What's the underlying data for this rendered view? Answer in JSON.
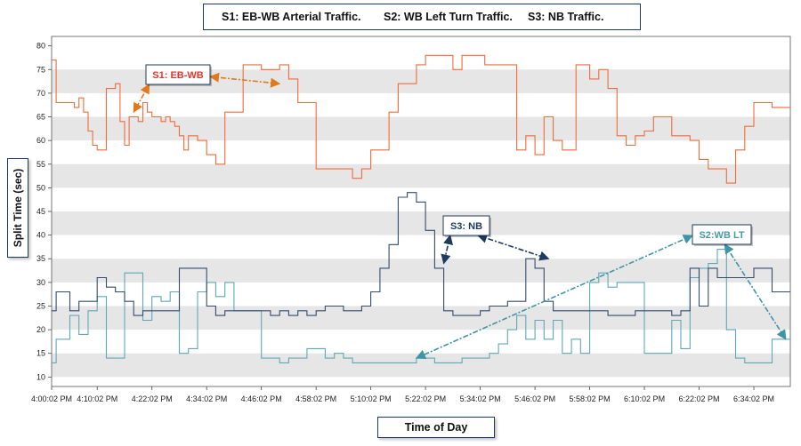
{
  "chart_data": {
    "type": "line",
    "step": true,
    "title": "",
    "xlabel": "Time of Day",
    "ylabel": "Split Time (sec)",
    "ylim": [
      8,
      82
    ],
    "yticks": [
      10,
      15,
      20,
      25,
      30,
      35,
      40,
      45,
      50,
      55,
      60,
      65,
      70,
      75,
      80
    ],
    "x_range_min": [
      0,
      162
    ],
    "xtick_labels": [
      "4:00:02 PM",
      "4:10:02 PM",
      "4:22:02 PM",
      "4:34:02 PM",
      "4:46:02 PM",
      "4:58:02 PM",
      "5:10:02 PM",
      "5:22:02 PM",
      "5:34:02 PM",
      "5:46:02 PM",
      "5:58:02 PM",
      "6:10:02 PM",
      "6:22:02 PM",
      "6:34:02 PM"
    ],
    "xtick_minutes": [
      0,
      10,
      22,
      34,
      46,
      58,
      70,
      82,
      94,
      106,
      118,
      130,
      142,
      154
    ],
    "grid": "horizontal-bands",
    "legend": {
      "position": "top",
      "entries": [
        "S1: EB-WB Arterial Traffic.",
        "S2: WB Left Turn Traffic.",
        "S3: NB Traffic."
      ]
    },
    "series": [
      {
        "name": "S1: EB-WB",
        "color": "#f26b3a",
        "x": [
          0,
          1,
          5,
          6,
          7,
          8,
          9,
          10,
          12,
          14,
          15,
          16,
          17,
          19,
          20,
          21,
          22,
          24,
          25,
          26,
          27,
          28,
          29,
          30,
          32,
          34,
          36,
          38,
          42,
          46,
          48,
          50,
          52,
          54,
          58,
          66,
          68,
          70,
          74,
          76,
          80,
          82,
          88,
          90,
          95,
          102,
          104,
          106,
          108,
          110,
          112,
          115,
          118,
          120,
          122,
          124,
          126,
          128,
          130,
          132,
          136,
          140,
          142,
          144,
          148,
          150,
          152,
          154,
          158,
          162
        ],
        "values": [
          77,
          68,
          67,
          69,
          66,
          62,
          59,
          58,
          71,
          72,
          64,
          59,
          65,
          64,
          68,
          66,
          65,
          64,
          65,
          64,
          63,
          61,
          58,
          61,
          60,
          57,
          55,
          66,
          76,
          75,
          75,
          76,
          73,
          68,
          54,
          52,
          54,
          58,
          66,
          72,
          76,
          78,
          75,
          78,
          76,
          58,
          61,
          57,
          65,
          60,
          58,
          76,
          73,
          75,
          71,
          61,
          59,
          61,
          62,
          65,
          61,
          60,
          56,
          54,
          51,
          58,
          63,
          68,
          67,
          67
        ]
      },
      {
        "name": "S2: WB LT",
        "color": "#5fa8b6",
        "x": [
          0,
          1,
          4,
          6,
          8,
          10,
          12,
          16,
          20,
          22,
          24,
          26,
          28,
          30,
          32,
          34,
          36,
          38,
          40,
          46,
          50,
          52,
          56,
          60,
          62,
          64,
          66,
          68,
          70,
          80,
          84,
          90,
          96,
          98,
          100,
          102,
          104,
          106,
          108,
          110,
          112,
          114,
          116,
          118,
          120,
          122,
          124,
          130,
          136,
          138,
          140,
          142,
          144,
          146,
          148,
          150,
          152,
          154,
          158,
          162
        ],
        "values": [
          13,
          18,
          23,
          19,
          24,
          27,
          14,
          32,
          22,
          27,
          26,
          28,
          15,
          16,
          28,
          30,
          27,
          30,
          24,
          14,
          13,
          14,
          16,
          14,
          15,
          14,
          13,
          13,
          13,
          14,
          13,
          14,
          15,
          17,
          20,
          23,
          18,
          22,
          18,
          22,
          15,
          18,
          15,
          30,
          32,
          29,
          30,
          15,
          22,
          16,
          31,
          33,
          34,
          37,
          20,
          14,
          13,
          13,
          18,
          18
        ]
      },
      {
        "name": "S3: NB",
        "color": "#344c6e",
        "x": [
          0,
          1,
          4,
          6,
          10,
          12,
          14,
          16,
          18,
          20,
          28,
          34,
          36,
          38,
          48,
          50,
          52,
          54,
          56,
          58,
          60,
          64,
          68,
          70,
          72,
          74,
          76,
          78,
          80,
          82,
          84,
          86,
          88,
          92,
          94,
          96,
          100,
          104,
          106,
          108,
          110,
          114,
          122,
          124,
          128,
          136,
          138,
          140,
          142,
          144,
          146,
          150,
          154,
          158,
          162
        ],
        "values": [
          24,
          28,
          24,
          26,
          31,
          29,
          28,
          26,
          23,
          24,
          33,
          25,
          23,
          24,
          23,
          24,
          23,
          24,
          23,
          24,
          25,
          24,
          25,
          28,
          33,
          38,
          48,
          49,
          47,
          41,
          33,
          24,
          23,
          23,
          24,
          25,
          26,
          35,
          33,
          26,
          24,
          24,
          23,
          23,
          24,
          23,
          24,
          33,
          25,
          33,
          31,
          31,
          33,
          28,
          28
        ]
      }
    ],
    "annotations": [
      {
        "label": "S1: EB-WB",
        "color": "#e8332a",
        "targets_min": [
          [
            18,
            66
          ],
          [
            50,
            72
          ]
        ]
      },
      {
        "label": "S3: NB",
        "color": "#1f3a5f",
        "targets_min": [
          [
            86,
            34
          ],
          [
            109,
            35
          ]
        ]
      },
      {
        "label": "S2:WB LT",
        "color": "#4a9aa8",
        "targets_min": [
          [
            80,
            14
          ],
          [
            161,
            18
          ]
        ]
      }
    ]
  }
}
